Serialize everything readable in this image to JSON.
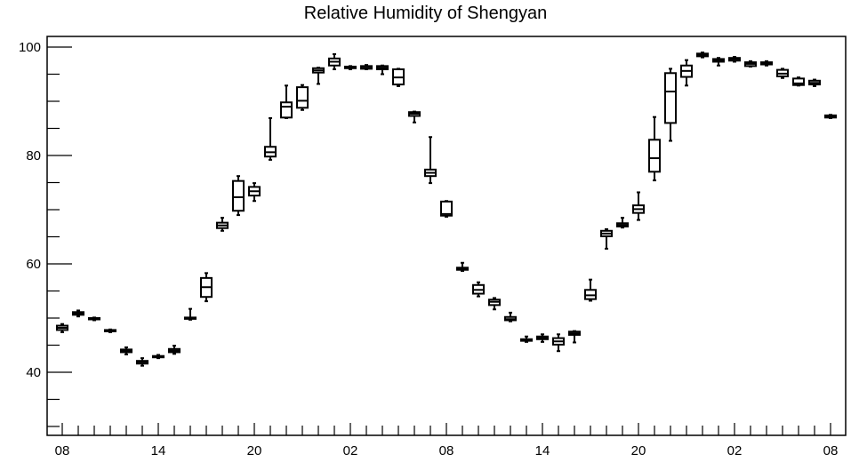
{
  "chart_data": {
    "type": "boxplot",
    "title": "Relative Humidity of Shengyan",
    "xlabel": "",
    "ylabel": "",
    "ylim": [
      28,
      102
    ],
    "y_ticks": [
      "40",
      "60",
      "80",
      "100"
    ],
    "x_tick_labels": [
      "08",
      "14",
      "20",
      "02",
      "08",
      "14",
      "20",
      "02",
      "08"
    ],
    "grid": false,
    "series": [
      {
        "values": [
          {
            "hour": 1,
            "min": 47.4,
            "q1": 47.8,
            "median": 48.2,
            "q3": 48.6,
            "max": 48.9
          },
          {
            "hour": 2,
            "min": 50.3,
            "q1": 50.6,
            "median": 50.9,
            "q3": 51.1,
            "max": 51.4
          },
          {
            "hour": 3,
            "min": 49.6,
            "q1": 49.8,
            "median": 49.9,
            "q3": 50.0,
            "max": 50.1
          },
          {
            "hour": 4,
            "min": 47.4,
            "q1": 47.6,
            "median": 47.7,
            "q3": 47.8,
            "max": 47.9
          },
          {
            "hour": 5,
            "min": 43.3,
            "q1": 43.7,
            "median": 44.0,
            "q3": 44.2,
            "max": 44.6
          },
          {
            "hour": 6,
            "min": 41.2,
            "q1": 41.6,
            "median": 41.9,
            "q3": 42.1,
            "max": 42.6
          },
          {
            "hour": 7,
            "min": 42.6,
            "q1": 42.8,
            "median": 42.9,
            "q3": 43.0,
            "max": 43.2
          },
          {
            "hour": 8,
            "min": 43.4,
            "q1": 43.7,
            "median": 44.0,
            "q3": 44.3,
            "max": 44.9
          },
          {
            "hour": 9,
            "min": 49.7,
            "q1": 49.9,
            "median": 50.0,
            "q3": 50.1,
            "max": 51.7
          },
          {
            "hour": 10,
            "min": 53.1,
            "q1": 53.9,
            "median": 55.7,
            "q3": 57.4,
            "max": 58.3
          },
          {
            "hour": 11,
            "min": 66.1,
            "q1": 66.6,
            "median": 67.1,
            "q3": 67.6,
            "max": 68.5
          },
          {
            "hour": 12,
            "min": 69.0,
            "q1": 69.8,
            "median": 72.3,
            "q3": 75.3,
            "max": 76.2
          },
          {
            "hour": 13,
            "min": 71.6,
            "q1": 72.6,
            "median": 73.4,
            "q3": 74.2,
            "max": 74.9
          },
          {
            "hour": 14,
            "min": 79.2,
            "q1": 79.8,
            "median": 80.6,
            "q3": 81.6,
            "max": 86.9
          },
          {
            "hour": 15,
            "min": 86.9,
            "q1": 87.0,
            "median": 89.0,
            "q3": 89.8,
            "max": 92.9
          },
          {
            "hour": 16,
            "min": 88.4,
            "q1": 88.8,
            "median": 90.1,
            "q3": 92.6,
            "max": 93.0
          },
          {
            "hour": 17,
            "min": 93.2,
            "q1": 95.3,
            "median": 95.7,
            "q3": 96.1,
            "max": 96.2
          },
          {
            "hour": 18,
            "min": 95.9,
            "q1": 96.6,
            "median": 97.3,
            "q3": 97.9,
            "max": 98.7
          },
          {
            "hour": 19,
            "min": 95.9,
            "q1": 96.1,
            "median": 96.3,
            "q3": 96.4,
            "max": 96.5
          },
          {
            "hour": 20,
            "min": 95.9,
            "q1": 96.0,
            "median": 96.2,
            "q3": 96.5,
            "max": 96.7
          },
          {
            "hour": 21,
            "min": 95.0,
            "q1": 95.9,
            "median": 96.2,
            "q3": 96.5,
            "max": 96.6
          },
          {
            "hour": 22,
            "min": 92.8,
            "q1": 93.1,
            "median": 94.4,
            "q3": 95.9,
            "max": 96.0
          },
          {
            "hour": 23,
            "min": 86.1,
            "q1": 87.3,
            "median": 87.7,
            "q3": 88.0,
            "max": 88.1
          },
          {
            "hour": 24,
            "min": 74.9,
            "q1": 76.2,
            "median": 76.8,
            "q3": 77.4,
            "max": 83.4
          },
          {
            "hour": 25,
            "min": 68.7,
            "q1": 68.9,
            "median": 69.2,
            "q3": 71.5,
            "max": 71.6
          },
          {
            "hour": 26,
            "min": 58.7,
            "q1": 58.9,
            "median": 59.1,
            "q3": 59.3,
            "max": 60.2
          },
          {
            "hour": 27,
            "min": 54.0,
            "q1": 54.5,
            "median": 55.2,
            "q3": 56.1,
            "max": 56.6
          },
          {
            "hour": 28,
            "min": 51.6,
            "q1": 52.4,
            "median": 53.0,
            "q3": 53.4,
            "max": 53.7
          },
          {
            "hour": 29,
            "min": 49.4,
            "q1": 49.6,
            "median": 49.8,
            "q3": 50.2,
            "max": 51.0
          },
          {
            "hour": 30,
            "min": 45.6,
            "q1": 45.8,
            "median": 46.0,
            "q3": 46.1,
            "max": 46.6
          },
          {
            "hour": 31,
            "min": 45.6,
            "q1": 46.1,
            "median": 46.4,
            "q3": 46.6,
            "max": 47.0
          },
          {
            "hour": 32,
            "min": 43.9,
            "q1": 45.1,
            "median": 45.7,
            "q3": 46.3,
            "max": 47.0
          },
          {
            "hour": 33,
            "min": 45.5,
            "q1": 46.9,
            "median": 47.2,
            "q3": 47.5,
            "max": 47.6
          },
          {
            "hour": 34,
            "min": 53.2,
            "q1": 53.5,
            "median": 54.2,
            "q3": 55.2,
            "max": 57.1
          },
          {
            "hour": 35,
            "min": 62.8,
            "q1": 65.1,
            "median": 65.6,
            "q3": 66.1,
            "max": 66.4
          },
          {
            "hour": 36,
            "min": 66.7,
            "q1": 66.9,
            "median": 67.2,
            "q3": 67.5,
            "max": 68.5
          },
          {
            "hour": 37,
            "min": 68.1,
            "q1": 69.4,
            "median": 70.1,
            "q3": 70.8,
            "max": 73.2
          },
          {
            "hour": 38,
            "min": 75.4,
            "q1": 77.0,
            "median": 79.5,
            "q3": 82.9,
            "max": 87.1
          },
          {
            "hour": 39,
            "min": 82.7,
            "q1": 86.0,
            "median": 91.8,
            "q3": 95.2,
            "max": 96.0
          },
          {
            "hour": 40,
            "min": 92.9,
            "q1": 94.5,
            "median": 95.6,
            "q3": 96.6,
            "max": 97.6
          },
          {
            "hour": 41,
            "min": 98.1,
            "q1": 98.3,
            "median": 98.6,
            "q3": 98.8,
            "max": 99.0
          },
          {
            "hour": 42,
            "min": 96.6,
            "q1": 97.3,
            "median": 97.6,
            "q3": 97.8,
            "max": 98.0
          },
          {
            "hour": 43,
            "min": 97.3,
            "q1": 97.5,
            "median": 97.8,
            "q3": 98.0,
            "max": 98.2
          },
          {
            "hour": 44,
            "min": 96.4,
            "q1": 96.5,
            "median": 96.9,
            "q3": 97.2,
            "max": 97.4
          },
          {
            "hour": 45,
            "min": 96.6,
            "q1": 96.8,
            "median": 97.0,
            "q3": 97.2,
            "max": 97.4
          },
          {
            "hour": 46,
            "min": 94.3,
            "q1": 94.6,
            "median": 95.1,
            "q3": 95.8,
            "max": 96.0
          },
          {
            "hour": 47,
            "min": 92.9,
            "q1": 93.0,
            "median": 93.3,
            "q3": 94.2,
            "max": 94.4
          },
          {
            "hour": 48,
            "min": 92.8,
            "q1": 93.1,
            "median": 93.4,
            "q3": 93.8,
            "max": 94.0
          },
          {
            "hour": 49,
            "min": 86.9,
            "q1": 87.0,
            "median": 87.2,
            "q3": 87.4,
            "max": 87.5
          }
        ]
      }
    ]
  }
}
